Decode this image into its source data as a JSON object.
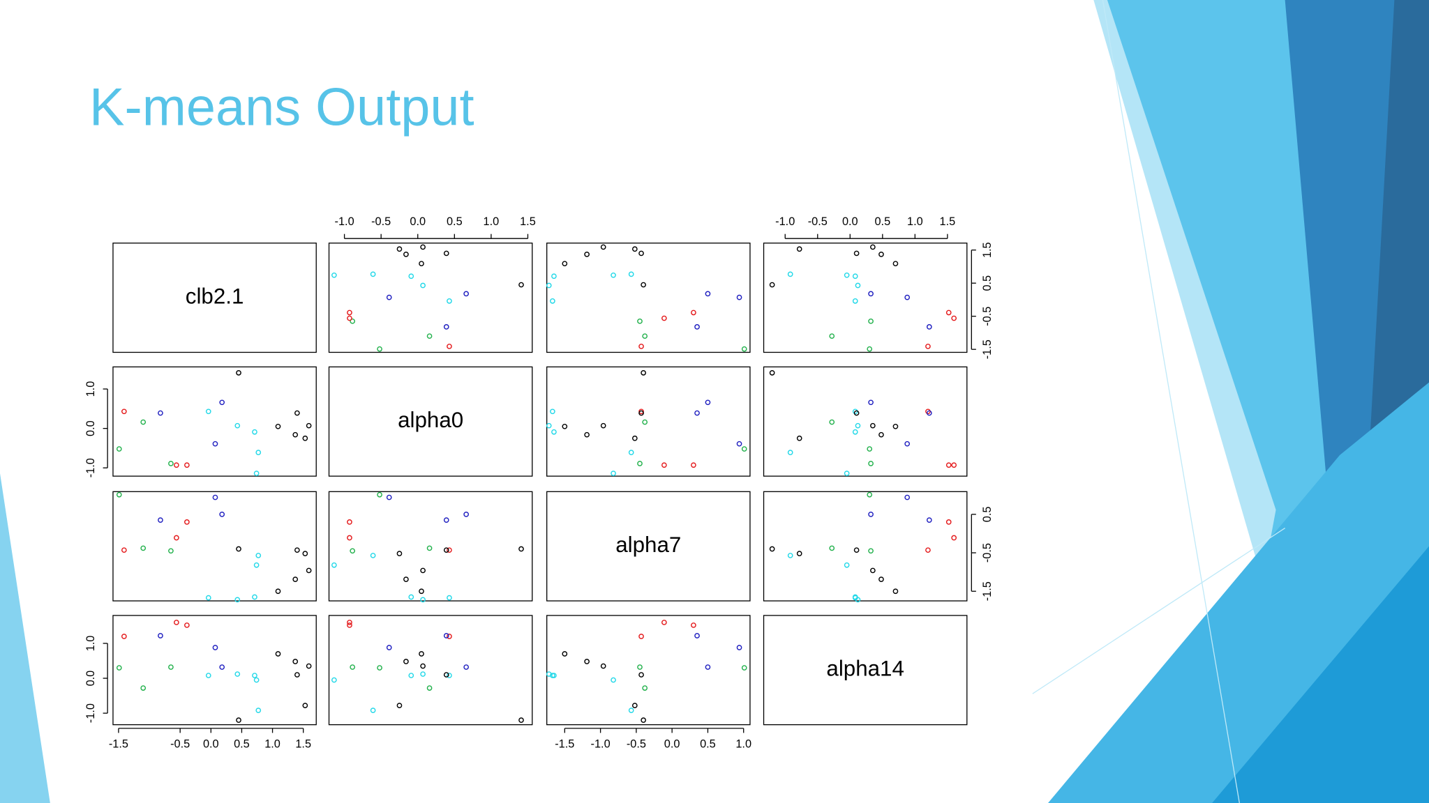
{
  "slide": {
    "title": "K-means Output"
  },
  "chart_data": {
    "type": "pairs",
    "colors": [
      "#e41a1c",
      "#22b14c",
      "#22b14c",
      "#2020c0",
      "#22b14c",
      "#e41a1c",
      "#e41a1c",
      "#2020c0",
      "#2020c0",
      "#22d8e8",
      "#22d8e8",
      "#22d8e8",
      "#22d8e8",
      "#22d8e8",
      "#000000",
      "#000000",
      "#000000",
      "#000000",
      "#000000",
      "#000000"
    ],
    "variables": [
      {
        "name": "clb2.1",
        "values": [
          -1.41,
          -1.49,
          -1.1,
          -0.82,
          -0.65,
          -0.56,
          -0.39,
          0.07,
          0.18,
          -0.04,
          0.43,
          0.71,
          0.77,
          0.74,
          0.45,
          1.09,
          1.4,
          1.37,
          1.53,
          1.59
        ],
        "lim": [
          -1.59,
          1.71
        ],
        "xticks": [
          -1.5,
          -0.5,
          {
            "value": 0,
            "label": "0.0"
          },
          0.5,
          {
            "value": 1,
            "label": "1.0"
          },
          1.5
        ],
        "yticks": [
          1.5,
          0.5,
          -0.5,
          -1.5
        ]
      },
      {
        "name": "alpha0",
        "values": [
          0.43,
          -0.52,
          0.16,
          0.39,
          -0.89,
          -0.93,
          -0.93,
          -0.39,
          0.66,
          0.43,
          0.07,
          -0.09,
          -0.61,
          -1.14,
          1.41,
          0.05,
          0.39,
          -0.16,
          -0.25,
          0.07
        ],
        "lim": [
          -1.21,
          1.56
        ],
        "xticks": [
          {
            "value": -1,
            "label": "-1.0"
          },
          -0.5,
          {
            "value": 0,
            "label": "0.0"
          },
          0.5,
          {
            "value": 1,
            "label": "1.0"
          },
          1.5
        ],
        "yticks": [
          {
            "value": 1,
            "label": "1.0"
          },
          {
            "value": 0,
            "label": "0.0"
          },
          {
            "value": -1,
            "label": "-1.0"
          }
        ]
      },
      {
        "name": "alpha7",
        "values": [
          -0.43,
          1.01,
          -0.38,
          0.35,
          -0.45,
          -0.11,
          0.3,
          0.94,
          0.5,
          -1.67,
          -1.72,
          -1.65,
          -0.57,
          -0.82,
          -0.4,
          -1.5,
          -0.43,
          -1.19,
          -0.52,
          -0.96
        ],
        "lim": [
          -1.75,
          1.09
        ],
        "xticks": [
          -1.5,
          {
            "value": -1,
            "label": "-1.0"
          },
          -0.5,
          {
            "value": 0,
            "label": "0.0"
          },
          0.5,
          {
            "value": 1,
            "label": "1.0"
          }
        ],
        "yticks": [
          0.5,
          -0.5,
          -1.5
        ]
      },
      {
        "name": "alpha14",
        "values": [
          1.2,
          0.3,
          -0.28,
          1.22,
          0.32,
          1.6,
          1.52,
          0.88,
          0.32,
          0.08,
          0.12,
          0.08,
          -0.92,
          -0.05,
          -1.2,
          0.7,
          0.1,
          0.48,
          -0.78,
          0.35
        ],
        "lim": [
          -1.33,
          1.8
        ],
        "xticks": [
          {
            "value": -1,
            "label": "-1.0"
          },
          -0.5,
          {
            "value": 0,
            "label": "0.0"
          },
          0.5,
          {
            "value": 1,
            "label": "1.0"
          },
          1.5
        ],
        "yticks": [
          {
            "value": 1,
            "label": "1.0"
          },
          {
            "value": 0,
            "label": "0.0"
          },
          {
            "value": -1,
            "label": "-1.0"
          }
        ]
      }
    ]
  }
}
